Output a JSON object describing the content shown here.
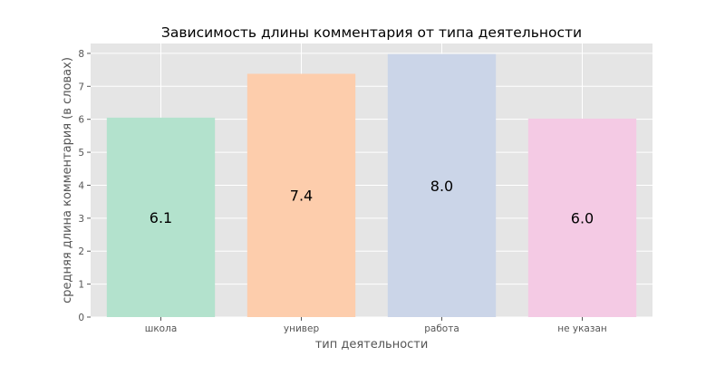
{
  "chart_data": {
    "type": "bar",
    "title": "Зависимость длины комментария от типа деятельности",
    "xlabel": "тип деятельности",
    "ylabel": "средняя длина комментария (в словах)",
    "categories": [
      "школа",
      "универ",
      "работа",
      "не указан"
    ],
    "values": [
      6.05,
      7.38,
      7.98,
      6.02
    ],
    "value_labels": [
      "6.1",
      "7.4",
      "8.0",
      "6.0"
    ],
    "colors": [
      "#b3e2cd",
      "#fdcdac",
      "#cbd5e8",
      "#f4cae4"
    ],
    "ylim": [
      0,
      8.3
    ],
    "yticks": [
      0,
      1,
      2,
      3,
      4,
      5,
      6,
      7,
      8
    ],
    "grid": true
  }
}
